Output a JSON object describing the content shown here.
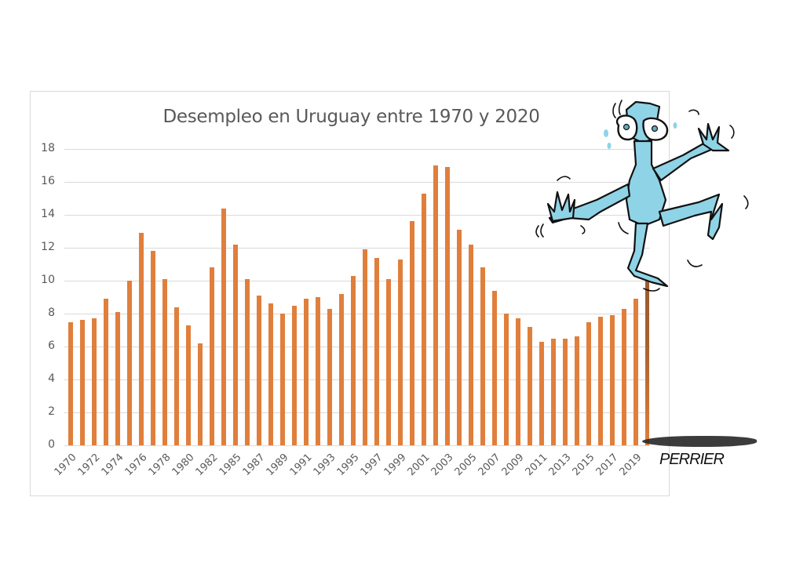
{
  "chart_data": {
    "type": "bar",
    "title": "Desempleo en Uruguay entre 1970 y 2020",
    "xlabel": "",
    "ylabel": "",
    "ylim": [
      0,
      18
    ],
    "yticks": [
      0,
      2,
      4,
      6,
      8,
      10,
      12,
      14,
      16,
      18
    ],
    "grid": true,
    "legend": null,
    "bar_color": "#e07f3c",
    "categories": [
      "1970",
      "1971",
      "1972",
      "1973",
      "1974",
      "1975",
      "1976",
      "1977",
      "1978",
      "1979",
      "1980",
      "1981",
      "1982",
      "1984",
      "1985",
      "1986",
      "1987",
      "1988",
      "1989",
      "1990",
      "1991",
      "1992",
      "1993",
      "1994",
      "1995",
      "1996",
      "1997",
      "1998",
      "1999",
      "2000",
      "2001",
      "2002",
      "2003",
      "2004",
      "2005",
      "2006",
      "2007",
      "2008",
      "2009",
      "2010",
      "2011",
      "2012",
      "2013",
      "2014",
      "2015",
      "2016",
      "2017",
      "2018",
      "2019",
      "2020"
    ],
    "values": [
      7.5,
      7.6,
      7.7,
      8.9,
      8.1,
      10.0,
      12.9,
      11.8,
      10.1,
      8.4,
      7.3,
      6.2,
      10.8,
      14.4,
      12.2,
      10.1,
      9.1,
      8.6,
      8.0,
      8.5,
      8.9,
      9.0,
      8.3,
      9.2,
      10.3,
      11.9,
      11.4,
      10.1,
      11.3,
      13.6,
      15.3,
      17.0,
      16.9,
      13.1,
      12.2,
      10.8,
      9.4,
      8.0,
      7.7,
      7.2,
      6.3,
      6.5,
      6.5,
      6.6,
      7.5,
      7.8,
      7.9,
      8.3,
      8.9,
      10.4
    ],
    "xtick_labels": [
      "1970",
      "1972",
      "1974",
      "1976",
      "1978",
      "1980",
      "1982",
      "1985",
      "1987",
      "1989",
      "1991",
      "1993",
      "1995",
      "1997",
      "1999",
      "2001",
      "2003",
      "2005",
      "2007",
      "2009",
      "2011",
      "2013",
      "2015",
      "2017",
      "2019"
    ],
    "annotations": [
      "Cartoon figure of a frightened blue man standing on top of the 2020 bar",
      "Signature: PERRIER"
    ]
  },
  "cartoon": {
    "description": "frightened-man-on-pole",
    "signature": "PERRIER",
    "figure_color": "#8fd3e6"
  }
}
